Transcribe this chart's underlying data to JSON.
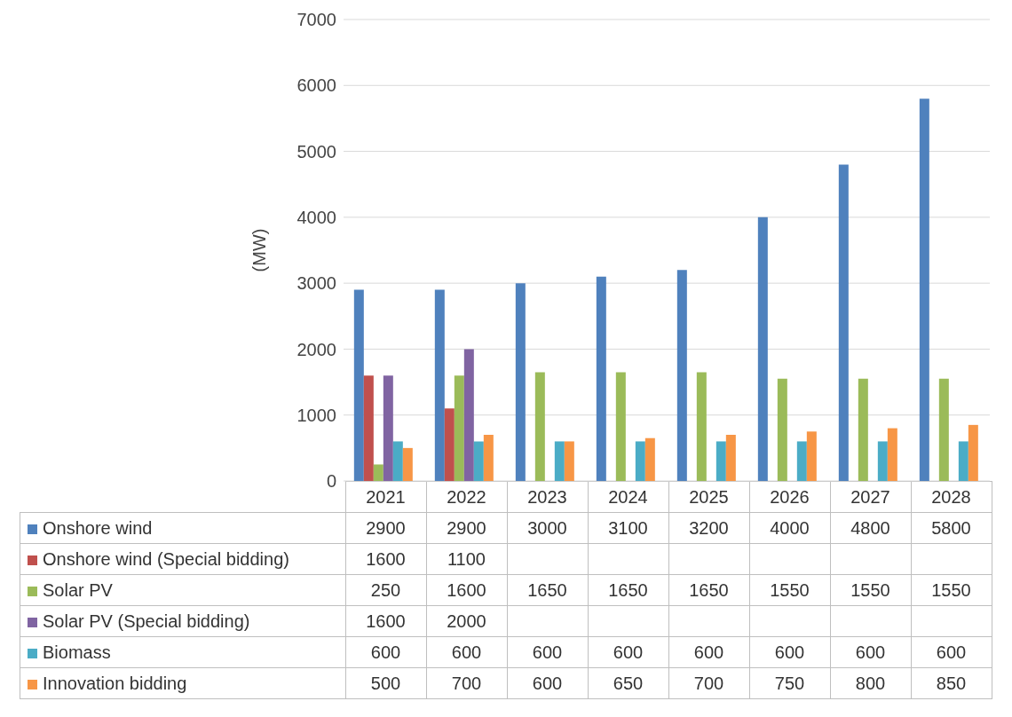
{
  "chart_data": {
    "type": "bar",
    "ylabel": "(MW)",
    "categories": [
      "2021",
      "2022",
      "2023",
      "2024",
      "2025",
      "2026",
      "2027",
      "2028"
    ],
    "series": [
      {
        "name": "Onshore wind",
        "color": "#4f81bd",
        "values": [
          2900,
          2900,
          3000,
          3100,
          3200,
          4000,
          4800,
          5800
        ]
      },
      {
        "name": "Onshore wind (Special bidding)",
        "color": "#c0504d",
        "values": [
          1600,
          1100,
          null,
          null,
          null,
          null,
          null,
          null
        ]
      },
      {
        "name": "Solar PV",
        "color": "#9bbb59",
        "values": [
          250,
          1600,
          1650,
          1650,
          1650,
          1550,
          1550,
          1550
        ]
      },
      {
        "name": "Solar PV (Special bidding)",
        "color": "#8064a2",
        "values": [
          1600,
          2000,
          null,
          null,
          null,
          null,
          null,
          null
        ]
      },
      {
        "name": "Biomass",
        "color": "#4bacc6",
        "values": [
          600,
          600,
          600,
          600,
          600,
          600,
          600,
          600
        ]
      },
      {
        "name": "Innovation bidding",
        "color": "#f79646",
        "values": [
          500,
          700,
          600,
          650,
          700,
          750,
          800,
          850
        ]
      }
    ],
    "ylim": [
      0,
      7000
    ],
    "yticks": [
      0,
      1000,
      2000,
      3000,
      4000,
      5000,
      6000,
      7000
    ],
    "grid": "y",
    "legend": "bottom",
    "data_labels": true
  }
}
